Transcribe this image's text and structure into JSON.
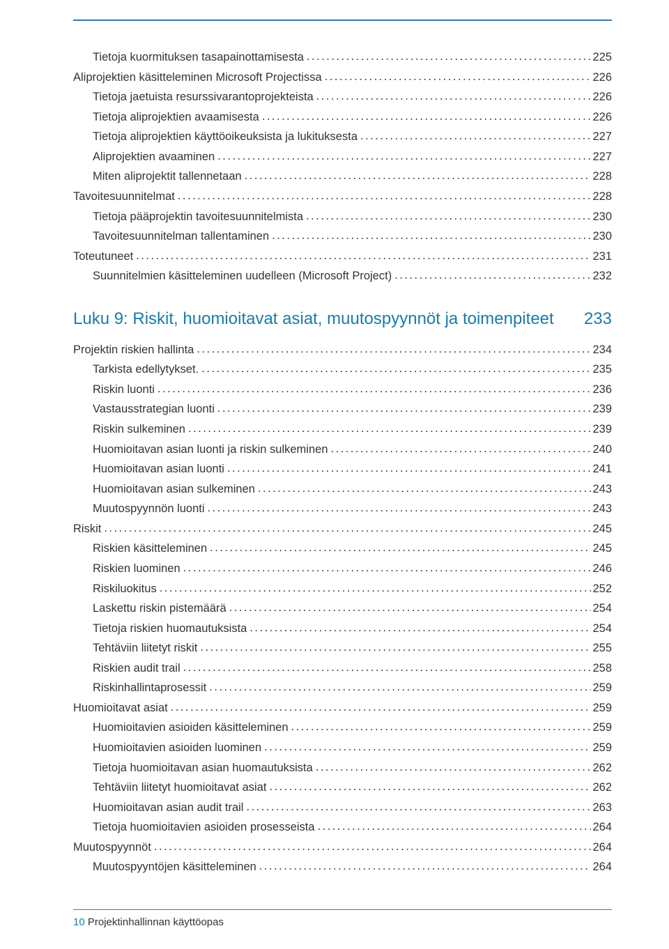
{
  "colors": {
    "accent": "#1b7ba8",
    "rule": "#3a77a8",
    "text": "#333333",
    "background": "#ffffff"
  },
  "typography": {
    "body_fontsize": 16.5,
    "heading_fontsize": 24,
    "footer_fontsize": 15
  },
  "section1": {
    "entries": [
      {
        "label": "Tietoja kuormituksen tasapainottamisesta",
        "page": "225",
        "indent": 2
      },
      {
        "label": "Aliprojektien käsitteleminen Microsoft Projectissa",
        "page": "226",
        "indent": 1
      },
      {
        "label": "Tietoja jaetuista resurssivarantoprojekteista",
        "page": "226",
        "indent": 2
      },
      {
        "label": "Tietoja aliprojektien avaamisesta",
        "page": "226",
        "indent": 2
      },
      {
        "label": "Tietoja aliprojektien käyttöoikeuksista ja lukituksesta",
        "page": "227",
        "indent": 2
      },
      {
        "label": "Aliprojektien avaaminen",
        "page": "227",
        "indent": 2
      },
      {
        "label": "Miten aliprojektit tallennetaan",
        "page": "228",
        "indent": 2
      },
      {
        "label": "Tavoitesuunnitelmat",
        "page": "228",
        "indent": 1
      },
      {
        "label": "Tietoja pääprojektin tavoitesuunnitelmista",
        "page": "230",
        "indent": 2
      },
      {
        "label": "Tavoitesuunnitelman tallentaminen",
        "page": "230",
        "indent": 2
      },
      {
        "label": "Toteutuneet",
        "page": "231",
        "indent": 1
      },
      {
        "label": "Suunnitelmien käsitteleminen uudelleen (Microsoft Project)",
        "page": "232",
        "indent": 2
      }
    ]
  },
  "chapter": {
    "title": "Luku 9: Riskit, huomioitavat asiat, muutospyynnöt ja toimenpiteet",
    "page": "233"
  },
  "section2": {
    "entries": [
      {
        "label": "Projektin riskien hallinta",
        "page": "234",
        "indent": 1
      },
      {
        "label": "Tarkista edellytykset.",
        "page": "235",
        "indent": 2
      },
      {
        "label": "Riskin luonti",
        "page": "236",
        "indent": 2
      },
      {
        "label": "Vastausstrategian luonti",
        "page": "239",
        "indent": 2
      },
      {
        "label": "Riskin sulkeminen",
        "page": "239",
        "indent": 2
      },
      {
        "label": "Huomioitavan asian luonti ja riskin sulkeminen",
        "page": "240",
        "indent": 2
      },
      {
        "label": "Huomioitavan asian luonti",
        "page": "241",
        "indent": 2
      },
      {
        "label": "Huomioitavan asian sulkeminen",
        "page": "243",
        "indent": 2
      },
      {
        "label": "Muutospyynnön luonti",
        "page": "243",
        "indent": 2
      },
      {
        "label": "Riskit",
        "page": "245",
        "indent": 1
      },
      {
        "label": "Riskien käsitteleminen",
        "page": "245",
        "indent": 2
      },
      {
        "label": "Riskien luominen",
        "page": "246",
        "indent": 2
      },
      {
        "label": "Riskiluokitus",
        "page": "252",
        "indent": 2
      },
      {
        "label": "Laskettu riskin pistemäärä",
        "page": "254",
        "indent": 2
      },
      {
        "label": "Tietoja riskien huomautuksista",
        "page": "254",
        "indent": 2
      },
      {
        "label": "Tehtäviin liitetyt riskit",
        "page": "255",
        "indent": 2
      },
      {
        "label": "Riskien audit trail",
        "page": "258",
        "indent": 2
      },
      {
        "label": "Riskinhallintaprosessit",
        "page": "259",
        "indent": 2
      },
      {
        "label": "Huomioitavat asiat",
        "page": "259",
        "indent": 1
      },
      {
        "label": "Huomioitavien asioiden käsitteleminen",
        "page": "259",
        "indent": 2
      },
      {
        "label": "Huomioitavien asioiden luominen",
        "page": "259",
        "indent": 2
      },
      {
        "label": "Tietoja huomioitavan asian huomautuksista",
        "page": "262",
        "indent": 2
      },
      {
        "label": "Tehtäviin liitetyt huomioitavat asiat",
        "page": "262",
        "indent": 2
      },
      {
        "label": "Huomioitavan asian audit trail",
        "page": "263",
        "indent": 2
      },
      {
        "label": "Tietoja huomioitavien asioiden prosesseista",
        "page": "264",
        "indent": 2
      },
      {
        "label": "Muutospyynnöt",
        "page": "264",
        "indent": 1
      },
      {
        "label": "Muutospyyntöjen käsitteleminen",
        "page": "264",
        "indent": 2
      }
    ]
  },
  "footer": {
    "pagenum": "10",
    "title": "Projektinhallinnan käyttöopas"
  }
}
